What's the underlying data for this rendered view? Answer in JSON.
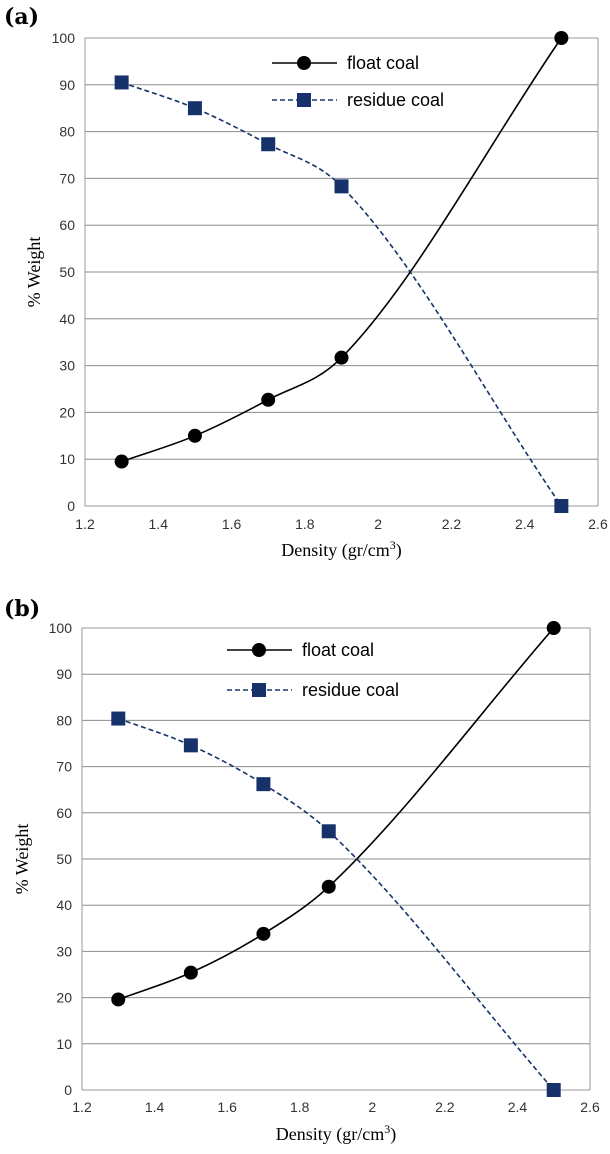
{
  "chart_data": [
    {
      "type": "line",
      "panel_label": "(a)",
      "xlabel": "Density (gr/cm",
      "xlabel_sup": "3",
      "xlabel_end": ")",
      "ylabel": "% Weight",
      "xlim": [
        1.2,
        2.6
      ],
      "ylim": [
        0,
        100
      ],
      "xticks": [
        "1.2",
        "1.4",
        "1.6",
        "1.8",
        "2",
        "2.2",
        "2.4",
        "2.6"
      ],
      "yticks": [
        "0",
        "10",
        "20",
        "30",
        "40",
        "50",
        "60",
        "70",
        "80",
        "90",
        "100"
      ],
      "grid": true,
      "legend_position": "top-center",
      "series": [
        {
          "name": "float coal",
          "color": "#000000",
          "marker": "circle",
          "line": "solid",
          "x": [
            1.3,
            1.5,
            1.7,
            1.9,
            2.5
          ],
          "y": [
            9.5,
            15.0,
            22.7,
            31.7,
            100.0
          ]
        },
        {
          "name": "residue coal",
          "color": "#17326b",
          "marker": "square",
          "line": "dashed",
          "x": [
            1.3,
            1.5,
            1.7,
            1.9,
            2.5
          ],
          "y": [
            90.5,
            85.0,
            77.3,
            68.3,
            0.0
          ]
        }
      ]
    },
    {
      "type": "line",
      "panel_label": "(b)",
      "xlabel": "Density (gr/cm",
      "xlabel_sup": "3",
      "xlabel_end": ")",
      "ylabel": "% Weight",
      "xlim": [
        1.2,
        2.6
      ],
      "ylim": [
        0,
        100
      ],
      "xticks": [
        "1.2",
        "1.4",
        "1.6",
        "1.8",
        "2",
        "2.2",
        "2.4",
        "2.6"
      ],
      "yticks": [
        "0",
        "10",
        "20",
        "30",
        "40",
        "50",
        "60",
        "70",
        "80",
        "90",
        "100"
      ],
      "grid": true,
      "legend_position": "top-center",
      "series": [
        {
          "name": "float coal",
          "color": "#000000",
          "marker": "circle",
          "line": "solid",
          "x": [
            1.3,
            1.5,
            1.7,
            1.88,
            2.5
          ],
          "y": [
            19.6,
            25.4,
            33.8,
            44.0,
            100.0
          ]
        },
        {
          "name": "residue coal",
          "color": "#17326b",
          "marker": "square",
          "line": "dashed",
          "x": [
            1.3,
            1.5,
            1.7,
            1.88,
            2.5
          ],
          "y": [
            80.4,
            74.6,
            66.2,
            56.0,
            0.0
          ]
        }
      ]
    }
  ]
}
